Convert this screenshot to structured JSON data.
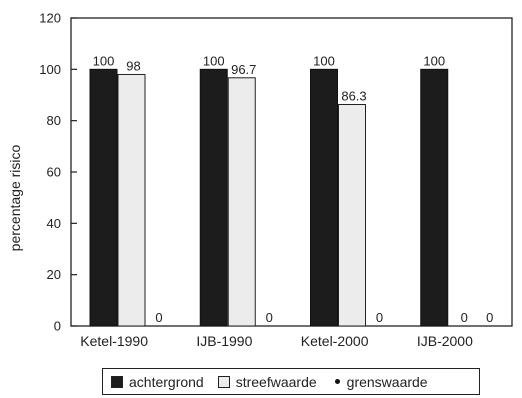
{
  "chart_data": {
    "type": "bar",
    "categories": [
      "Ketel-1990",
      "IJB-1990",
      "Ketel-2000",
      "IJB-2000"
    ],
    "series": [
      {
        "name": "achtergrond",
        "values": [
          100,
          100,
          100,
          100
        ],
        "color": "#1c1c1c",
        "labels": [
          "100",
          "100",
          "100",
          "100"
        ]
      },
      {
        "name": "streefwaarde",
        "values": [
          98,
          96.7,
          86.3,
          0
        ],
        "color": "#ececec",
        "labels": [
          "98",
          "96.7",
          "86.3",
          "0"
        ]
      },
      {
        "name": "grenswaarde",
        "values": [
          0,
          0,
          0,
          0
        ],
        "color": "#111111",
        "labels": [
          "0",
          "0",
          "0",
          "0"
        ]
      }
    ],
    "ylabel": "percentage risico",
    "ylim": [
      0,
      120
    ],
    "yticks": [
      "0",
      "20",
      "40",
      "60",
      "80",
      "100",
      "120"
    ],
    "grid": false,
    "legend_position": "bottom"
  }
}
